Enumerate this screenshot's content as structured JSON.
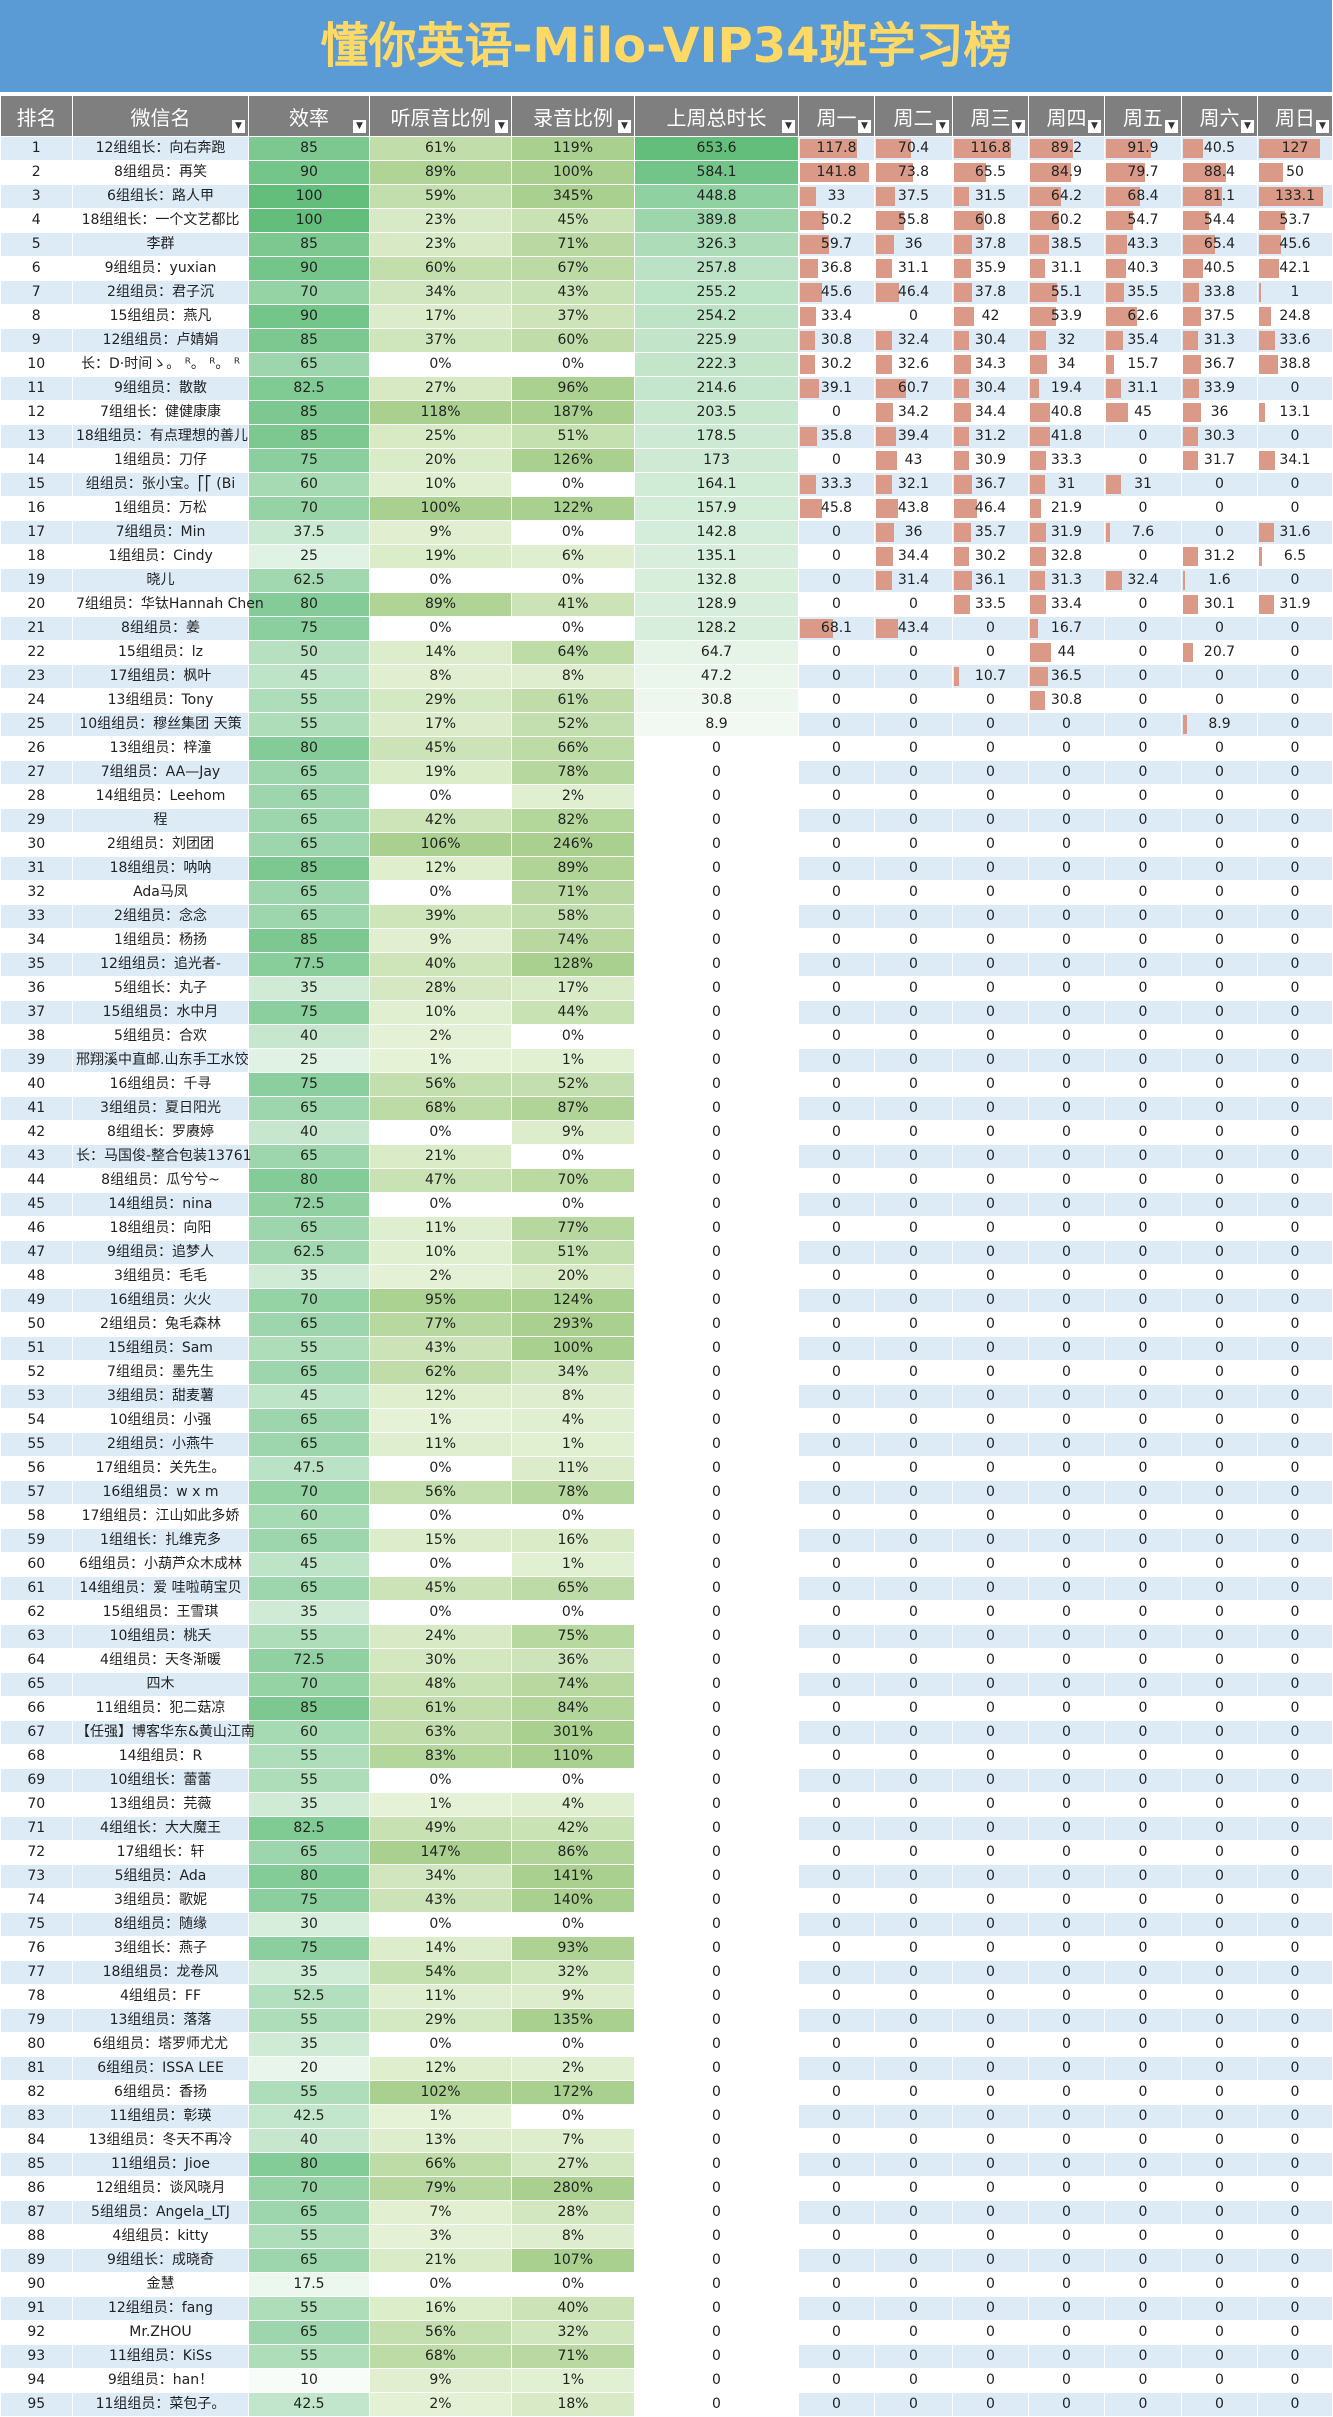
{
  "title": "懂你英语-Milo-VIP34班学习榜",
  "columns": [
    "排名",
    "微信名",
    "效率",
    "听原音比例",
    "录音比例",
    "上周总时长",
    "周一",
    "周二",
    "周三",
    "周四",
    "周五",
    "周六",
    "周日"
  ],
  "colors": {
    "header_bg": "#7f7f7f",
    "title_bg": "#5b9bd5",
    "title_text": "#ffd966",
    "day_bar": "#da9a87",
    "row_band": "#ddebf7"
  },
  "rows": [
    [
      "1",
      "12组组长：向右奔跑",
      "85",
      "61%",
      "119%",
      "653.6",
      "117.8",
      "70.4",
      "116.8",
      "89.2",
      "91.9",
      "40.5",
      "127"
    ],
    [
      "2",
      "8组组员：再笑",
      "90",
      "89%",
      "100%",
      "584.1",
      "141.8",
      "73.8",
      "65.5",
      "84.9",
      "79.7",
      "88.4",
      "50"
    ],
    [
      "3",
      "6组组长：路人甲",
      "100",
      "59%",
      "345%",
      "448.8",
      "33",
      "37.5",
      "31.5",
      "64.2",
      "68.4",
      "81.1",
      "133.1"
    ],
    [
      "4",
      "18组组长：一个文艺都比",
      "100",
      "23%",
      "45%",
      "389.8",
      "50.2",
      "55.8",
      "60.8",
      "60.2",
      "54.7",
      "54.4",
      "53.7"
    ],
    [
      "5",
      "李群",
      "85",
      "23%",
      "71%",
      "326.3",
      "59.7",
      "36",
      "37.8",
      "38.5",
      "43.3",
      "65.4",
      "45.6"
    ],
    [
      "6",
      "9组组员：yuxian",
      "90",
      "60%",
      "67%",
      "257.8",
      "36.8",
      "31.1",
      "35.9",
      "31.1",
      "40.3",
      "40.5",
      "42.1"
    ],
    [
      "7",
      "2组组员：君子沉",
      "70",
      "34%",
      "43%",
      "255.2",
      "45.6",
      "46.4",
      "37.8",
      "55.1",
      "35.5",
      "33.8",
      "1"
    ],
    [
      "8",
      "15组组员：燕凡",
      "90",
      "17%",
      "37%",
      "254.2",
      "33.4",
      "0",
      "42",
      "53.9",
      "62.6",
      "37.5",
      "24.8"
    ],
    [
      "9",
      "12组组员：卢婧娟",
      "85",
      "37%",
      "60%",
      "225.9",
      "30.8",
      "32.4",
      "30.4",
      "32",
      "35.4",
      "31.3",
      "33.6"
    ],
    [
      "10",
      "长：D·时间ゝ。 ᴿ。 ᴿ。 ᴿ",
      "65",
      "0%",
      "0%",
      "222.3",
      "30.2",
      "32.6",
      "34.3",
      "34",
      "15.7",
      "36.7",
      "38.8"
    ],
    [
      "11",
      "9组组员：散散",
      "82.5",
      "27%",
      "96%",
      "214.6",
      "39.1",
      "60.7",
      "30.4",
      "19.4",
      "31.1",
      "33.9",
      "0"
    ],
    [
      "12",
      "7组组长：健健康康",
      "85",
      "118%",
      "187%",
      "203.5",
      "0",
      "34.2",
      "34.4",
      "40.8",
      "45",
      "36",
      "13.1"
    ],
    [
      "13",
      "18组组员：有点理想的善儿",
      "85",
      "25%",
      "51%",
      "178.5",
      "35.8",
      "39.4",
      "31.2",
      "41.8",
      "0",
      "30.3",
      "0"
    ],
    [
      "14",
      "1组组员：刀仔",
      "75",
      "20%",
      "126%",
      "173",
      "0",
      "43",
      "30.9",
      "33.3",
      "0",
      "31.7",
      "34.1"
    ],
    [
      "15",
      "组组员：张小宝。⎡⎡  (Bi",
      "60",
      "10%",
      "0%",
      "164.1",
      "33.3",
      "32.1",
      "36.7",
      "31",
      "31",
      "0",
      "0"
    ],
    [
      "16",
      "1组组员：万松",
      "70",
      "100%",
      "122%",
      "157.9",
      "45.8",
      "43.8",
      "46.4",
      "21.9",
      "0",
      "0",
      "0"
    ],
    [
      "17",
      "7组组员：Min",
      "37.5",
      "9%",
      "0%",
      "142.8",
      "0",
      "36",
      "35.7",
      "31.9",
      "7.6",
      "0",
      "31.6"
    ],
    [
      "18",
      "1组组员：Cindy",
      "25",
      "19%",
      "6%",
      "135.1",
      "0",
      "34.4",
      "30.2",
      "32.8",
      "0",
      "31.2",
      "6.5"
    ],
    [
      "19",
      "晓儿",
      "62.5",
      "0%",
      "0%",
      "132.8",
      "0",
      "31.4",
      "36.1",
      "31.3",
      "32.4",
      "1.6",
      "0"
    ],
    [
      "20",
      "7组组员：华钛Hannah Chen",
      "80",
      "89%",
      "41%",
      "128.9",
      "0",
      "0",
      "33.5",
      "33.4",
      "0",
      "30.1",
      "31.9"
    ],
    [
      "21",
      "8组组员：姜",
      "75",
      "0%",
      "0%",
      "128.2",
      "68.1",
      "43.4",
      "0",
      "16.7",
      "0",
      "0",
      "0"
    ],
    [
      "22",
      "15组组员：lz",
      "50",
      "14%",
      "64%",
      "64.7",
      "0",
      "0",
      "0",
      "44",
      "0",
      "20.7",
      "0"
    ],
    [
      "23",
      "17组组员：枫叶",
      "45",
      "8%",
      "8%",
      "47.2",
      "0",
      "0",
      "10.7",
      "36.5",
      "0",
      "0",
      "0"
    ],
    [
      "24",
      "13组组员：Tony",
      "55",
      "29%",
      "61%",
      "30.8",
      "0",
      "0",
      "0",
      "30.8",
      "0",
      "0",
      "0"
    ],
    [
      "25",
      "10组组员：穆丝集团 天策",
      "55",
      "17%",
      "52%",
      "8.9",
      "0",
      "0",
      "0",
      "0",
      "0",
      "8.9",
      "0"
    ],
    [
      "26",
      "13组组员：梓潼",
      "80",
      "45%",
      "66%",
      "0",
      "0",
      "0",
      "0",
      "0",
      "0",
      "0",
      "0"
    ],
    [
      "27",
      "7组组员：AA—Jay",
      "65",
      "19%",
      "78%",
      "0",
      "0",
      "0",
      "0",
      "0",
      "0",
      "0",
      "0"
    ],
    [
      "28",
      "14组组员：Leehom",
      "65",
      "0%",
      "2%",
      "0",
      "0",
      "0",
      "0",
      "0",
      "0",
      "0",
      "0"
    ],
    [
      "29",
      "程",
      "65",
      "42%",
      "82%",
      "0",
      "0",
      "0",
      "0",
      "0",
      "0",
      "0",
      "0"
    ],
    [
      "30",
      "2组组员：刘团团",
      "65",
      "106%",
      "246%",
      "0",
      "0",
      "0",
      "0",
      "0",
      "0",
      "0",
      "0"
    ],
    [
      "31",
      "18组组员：呐呐",
      "85",
      "12%",
      "89%",
      "0",
      "0",
      "0",
      "0",
      "0",
      "0",
      "0",
      "0"
    ],
    [
      "32",
      "Ada马凤",
      "65",
      "0%",
      "71%",
      "0",
      "0",
      "0",
      "0",
      "0",
      "0",
      "0",
      "0"
    ],
    [
      "33",
      "2组组员：念念",
      "65",
      "39%",
      "58%",
      "0",
      "0",
      "0",
      "0",
      "0",
      "0",
      "0",
      "0"
    ],
    [
      "34",
      "1组组员：杨扬",
      "85",
      "9%",
      "74%",
      "0",
      "0",
      "0",
      "0",
      "0",
      "0",
      "0",
      "0"
    ],
    [
      "35",
      "12组组员：追光者-",
      "77.5",
      "40%",
      "128%",
      "0",
      "0",
      "0",
      "0",
      "0",
      "0",
      "0",
      "0"
    ],
    [
      "36",
      "5组组长：丸子",
      "35",
      "28%",
      "17%",
      "0",
      "0",
      "0",
      "0",
      "0",
      "0",
      "0",
      "0"
    ],
    [
      "37",
      "15组组员：水中月",
      "75",
      "10%",
      "44%",
      "0",
      "0",
      "0",
      "0",
      "0",
      "0",
      "0",
      "0"
    ],
    [
      "38",
      "5组组员：合欢",
      "40",
      "2%",
      "0%",
      "0",
      "0",
      "0",
      "0",
      "0",
      "0",
      "0",
      "0"
    ],
    [
      "39",
      "邢翔溪中直邮.山东手工水饺",
      "25",
      "1%",
      "1%",
      "0",
      "0",
      "0",
      "0",
      "0",
      "0",
      "0",
      "0"
    ],
    [
      "40",
      "16组组员：千寻",
      "75",
      "56%",
      "52%",
      "0",
      "0",
      "0",
      "0",
      "0",
      "0",
      "0",
      "0"
    ],
    [
      "41",
      "3组组员：夏日阳光",
      "65",
      "68%",
      "87%",
      "0",
      "0",
      "0",
      "0",
      "0",
      "0",
      "0",
      "0"
    ],
    [
      "42",
      "8组组长：罗赓婷",
      "40",
      "0%",
      "9%",
      "0",
      "0",
      "0",
      "0",
      "0",
      "0",
      "0",
      "0"
    ],
    [
      "43",
      "长：马国俊-整合包装13761",
      "65",
      "21%",
      "0%",
      "0",
      "0",
      "0",
      "0",
      "0",
      "0",
      "0",
      "0"
    ],
    [
      "44",
      "8组组员：瓜兮兮~",
      "80",
      "47%",
      "70%",
      "0",
      "0",
      "0",
      "0",
      "0",
      "0",
      "0",
      "0"
    ],
    [
      "45",
      "14组组员：nina",
      "72.5",
      "0%",
      "0%",
      "0",
      "0",
      "0",
      "0",
      "0",
      "0",
      "0",
      "0"
    ],
    [
      "46",
      "18组组员：向阳",
      "65",
      "11%",
      "77%",
      "0",
      "0",
      "0",
      "0",
      "0",
      "0",
      "0",
      "0"
    ],
    [
      "47",
      "9组组员：追梦人",
      "62.5",
      "10%",
      "51%",
      "0",
      "0",
      "0",
      "0",
      "0",
      "0",
      "0",
      "0"
    ],
    [
      "48",
      "3组组员：毛毛",
      "35",
      "2%",
      "20%",
      "0",
      "0",
      "0",
      "0",
      "0",
      "0",
      "0",
      "0"
    ],
    [
      "49",
      "16组组员：火火",
      "70",
      "95%",
      "124%",
      "0",
      "0",
      "0",
      "0",
      "0",
      "0",
      "0",
      "0"
    ],
    [
      "50",
      "2组组员：兔毛森林",
      "65",
      "77%",
      "293%",
      "0",
      "0",
      "0",
      "0",
      "0",
      "0",
      "0",
      "0"
    ],
    [
      "51",
      "15组组员：Sam",
      "55",
      "43%",
      "100%",
      "0",
      "0",
      "0",
      "0",
      "0",
      "0",
      "0",
      "0"
    ],
    [
      "52",
      "7组组员：墨先生",
      "65",
      "62%",
      "34%",
      "0",
      "0",
      "0",
      "0",
      "0",
      "0",
      "0",
      "0"
    ],
    [
      "53",
      "3组组员：甜麦薯",
      "45",
      "12%",
      "8%",
      "0",
      "0",
      "0",
      "0",
      "0",
      "0",
      "0",
      "0"
    ],
    [
      "54",
      "10组组员：小强",
      "65",
      "1%",
      "4%",
      "0",
      "0",
      "0",
      "0",
      "0",
      "0",
      "0",
      "0"
    ],
    [
      "55",
      "2组组员：小燕牛",
      "65",
      "11%",
      "1%",
      "0",
      "0",
      "0",
      "0",
      "0",
      "0",
      "0",
      "0"
    ],
    [
      "56",
      "17组组员：关先生。",
      "47.5",
      "0%",
      "11%",
      "0",
      "0",
      "0",
      "0",
      "0",
      "0",
      "0",
      "0"
    ],
    [
      "57",
      "16组组员：w x m",
      "70",
      "56%",
      "78%",
      "0",
      "0",
      "0",
      "0",
      "0",
      "0",
      "0",
      "0"
    ],
    [
      "58",
      "17组组员：江山如此多娇",
      "60",
      "0%",
      "0%",
      "0",
      "0",
      "0",
      "0",
      "0",
      "0",
      "0",
      "0"
    ],
    [
      "59",
      "1组组长：扎维克多",
      "65",
      "15%",
      "16%",
      "0",
      "0",
      "0",
      "0",
      "0",
      "0",
      "0",
      "0"
    ],
    [
      "60",
      "6组组员：小葫芦众木成林",
      "45",
      "0%",
      "1%",
      "0",
      "0",
      "0",
      "0",
      "0",
      "0",
      "0",
      "0"
    ],
    [
      "61",
      "14组组员：爱 哇啦萌宝贝",
      "65",
      "45%",
      "65%",
      "0",
      "0",
      "0",
      "0",
      "0",
      "0",
      "0",
      "0"
    ],
    [
      "62",
      "15组组员：王雪琪",
      "35",
      "0%",
      "0%",
      "0",
      "0",
      "0",
      "0",
      "0",
      "0",
      "0",
      "0"
    ],
    [
      "63",
      "10组组员：桃夭",
      "55",
      "24%",
      "75%",
      "0",
      "0",
      "0",
      "0",
      "0",
      "0",
      "0",
      "0"
    ],
    [
      "64",
      "4组组员：天冬渐暖",
      "72.5",
      "30%",
      "36%",
      "0",
      "0",
      "0",
      "0",
      "0",
      "0",
      "0",
      "0"
    ],
    [
      "65",
      "四木",
      "70",
      "48%",
      "74%",
      "0",
      "0",
      "0",
      "0",
      "0",
      "0",
      "0",
      "0"
    ],
    [
      "66",
      "11组组员：犯二菇凉",
      "85",
      "61%",
      "84%",
      "0",
      "0",
      "0",
      "0",
      "0",
      "0",
      "0",
      "0"
    ],
    [
      "67",
      "【任强】博客华东&黄山江南",
      "60",
      "63%",
      "301%",
      "0",
      "0",
      "0",
      "0",
      "0",
      "0",
      "0",
      "0"
    ],
    [
      "68",
      "14组组员：R",
      "55",
      "83%",
      "110%",
      "0",
      "0",
      "0",
      "0",
      "0",
      "0",
      "0",
      "0"
    ],
    [
      "69",
      "10组组长：蕾蕾",
      "55",
      "0%",
      "0%",
      "0",
      "0",
      "0",
      "0",
      "0",
      "0",
      "0",
      "0"
    ],
    [
      "70",
      "13组组员：芫薇",
      "35",
      "1%",
      "4%",
      "0",
      "0",
      "0",
      "0",
      "0",
      "0",
      "0",
      "0"
    ],
    [
      "71",
      "4组组长：大大魔王",
      "82.5",
      "49%",
      "42%",
      "0",
      "0",
      "0",
      "0",
      "0",
      "0",
      "0",
      "0"
    ],
    [
      "72",
      "17组组长：轩",
      "65",
      "147%",
      "86%",
      "0",
      "0",
      "0",
      "0",
      "0",
      "0",
      "0",
      "0"
    ],
    [
      "73",
      "5组组员：Ada",
      "80",
      "34%",
      "141%",
      "0",
      "0",
      "0",
      "0",
      "0",
      "0",
      "0",
      "0"
    ],
    [
      "74",
      "3组组员：歌妮",
      "75",
      "43%",
      "140%",
      "0",
      "0",
      "0",
      "0",
      "0",
      "0",
      "0",
      "0"
    ],
    [
      "75",
      "8组组员：随缘",
      "30",
      "0%",
      "0%",
      "0",
      "0",
      "0",
      "0",
      "0",
      "0",
      "0",
      "0"
    ],
    [
      "76",
      "3组组长：燕子",
      "75",
      "14%",
      "93%",
      "0",
      "0",
      "0",
      "0",
      "0",
      "0",
      "0",
      "0"
    ],
    [
      "77",
      "18组组员：龙卷风",
      "35",
      "54%",
      "32%",
      "0",
      "0",
      "0",
      "0",
      "0",
      "0",
      "0",
      "0"
    ],
    [
      "78",
      "4组组员：FF",
      "52.5",
      "11%",
      "9%",
      "0",
      "0",
      "0",
      "0",
      "0",
      "0",
      "0",
      "0"
    ],
    [
      "79",
      "13组组员：落落",
      "55",
      "29%",
      "135%",
      "0",
      "0",
      "0",
      "0",
      "0",
      "0",
      "0",
      "0"
    ],
    [
      "80",
      "6组组员：塔罗师尤尤",
      "35",
      "0%",
      "0%",
      "0",
      "0",
      "0",
      "0",
      "0",
      "0",
      "0",
      "0"
    ],
    [
      "81",
      "6组组员：ISSA LEE",
      "20",
      "12%",
      "2%",
      "0",
      "0",
      "0",
      "0",
      "0",
      "0",
      "0",
      "0"
    ],
    [
      "82",
      "6组组员：香扬",
      "55",
      "102%",
      "172%",
      "0",
      "0",
      "0",
      "0",
      "0",
      "0",
      "0",
      "0"
    ],
    [
      "83",
      "11组组员：彰瑛",
      "42.5",
      "1%",
      "0%",
      "0",
      "0",
      "0",
      "0",
      "0",
      "0",
      "0",
      "0"
    ],
    [
      "84",
      "13组组员：冬天不再冷",
      "40",
      "13%",
      "7%",
      "0",
      "0",
      "0",
      "0",
      "0",
      "0",
      "0",
      "0"
    ],
    [
      "85",
      "11组组员：Jioe",
      "80",
      "66%",
      "27%",
      "0",
      "0",
      "0",
      "0",
      "0",
      "0",
      "0",
      "0"
    ],
    [
      "86",
      "12组组员：谈风晓月",
      "70",
      "79%",
      "280%",
      "0",
      "0",
      "0",
      "0",
      "0",
      "0",
      "0",
      "0"
    ],
    [
      "87",
      "5组组员：Angela_LTJ",
      "65",
      "7%",
      "28%",
      "0",
      "0",
      "0",
      "0",
      "0",
      "0",
      "0",
      "0"
    ],
    [
      "88",
      "4组组员：kitty",
      "55",
      "3%",
      "8%",
      "0",
      "0",
      "0",
      "0",
      "0",
      "0",
      "0",
      "0"
    ],
    [
      "89",
      "9组组长：成晓奇",
      "65",
      "21%",
      "107%",
      "0",
      "0",
      "0",
      "0",
      "0",
      "0",
      "0",
      "0"
    ],
    [
      "90",
      "金慧",
      "17.5",
      "0%",
      "0%",
      "0",
      "0",
      "0",
      "0",
      "0",
      "0",
      "0",
      "0"
    ],
    [
      "91",
      "12组组员：fang",
      "55",
      "16%",
      "40%",
      "0",
      "0",
      "0",
      "0",
      "0",
      "0",
      "0",
      "0"
    ],
    [
      "92",
      "Mr.ZHOU",
      "65",
      "56%",
      "32%",
      "0",
      "0",
      "0",
      "0",
      "0",
      "0",
      "0",
      "0"
    ],
    [
      "93",
      "11组组员：KiSs",
      "55",
      "68%",
      "71%",
      "0",
      "0",
      "0",
      "0",
      "0",
      "0",
      "0",
      "0"
    ],
    [
      "94",
      "9组组员：han！",
      "10",
      "9%",
      "1%",
      "0",
      "0",
      "0",
      "0",
      "0",
      "0",
      "0",
      "0"
    ],
    [
      "95",
      "11组组员：菜包子。",
      "42.5",
      "2%",
      "18%",
      "0",
      "0",
      "0",
      "0",
      "0",
      "0",
      "0",
      "0"
    ]
  ]
}
